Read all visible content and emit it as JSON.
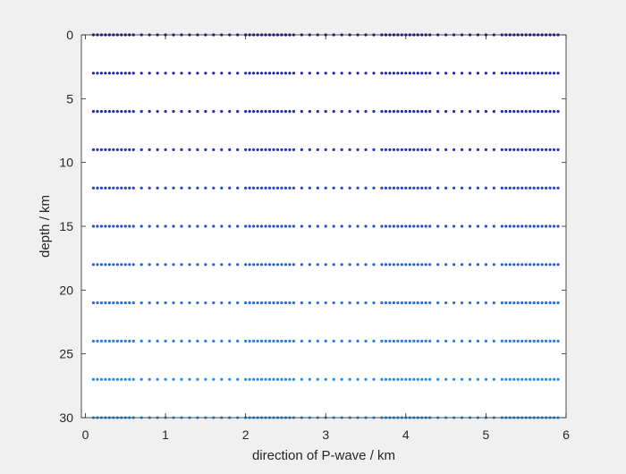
{
  "figure": {
    "background": "#f0f0f0",
    "axes_background": "#ffffff"
  },
  "chart_data": {
    "type": "scatter",
    "title": "",
    "xlabel": "direction of P-wave / km",
    "ylabel": "depth / km",
    "xlim": [
      -0.05,
      6
    ],
    "ylim": [
      0,
      30
    ],
    "y_reversed": true,
    "x_ticks": [
      0,
      1,
      2,
      3,
      4,
      5,
      6
    ],
    "x_tick_labels": [
      "0",
      "1",
      "2",
      "3",
      "4",
      "5",
      "6"
    ],
    "y_ticks": [
      0,
      5,
      10,
      15,
      20,
      25,
      30
    ],
    "y_tick_labels": [
      "0",
      "5",
      "10",
      "15",
      "20",
      "25",
      "30"
    ],
    "grid": false,
    "legend": "none",
    "marker": "dot",
    "x_values": [
      0.1,
      0.15,
      0.2,
      0.25,
      0.3,
      0.35,
      0.4,
      0.45,
      0.5,
      0.55,
      0.6,
      0.7,
      0.8,
      0.9,
      1.0,
      1.1,
      1.2,
      1.3,
      1.4,
      1.5,
      1.6,
      1.7,
      1.8,
      1.9,
      2.0,
      2.05,
      2.1,
      2.15,
      2.2,
      2.25,
      2.3,
      2.35,
      2.4,
      2.45,
      2.5,
      2.55,
      2.6,
      2.7,
      2.8,
      2.9,
      3.0,
      3.1,
      3.2,
      3.3,
      3.4,
      3.5,
      3.6,
      3.7,
      3.75,
      3.8,
      3.85,
      3.9,
      3.95,
      4.0,
      4.05,
      4.1,
      4.15,
      4.2,
      4.25,
      4.3,
      4.4,
      4.5,
      4.6,
      4.7,
      4.8,
      4.9,
      5.0,
      5.1,
      5.2,
      5.25,
      5.3,
      5.35,
      5.4,
      5.45,
      5.5,
      5.55,
      5.6,
      5.65,
      5.7,
      5.75,
      5.8,
      5.85,
      5.9
    ],
    "series": [
      {
        "depth": 0,
        "color": "#1a1aa6"
      },
      {
        "depth": 3,
        "color": "#1c22ae"
      },
      {
        "depth": 6,
        "color": "#1e2cb6"
      },
      {
        "depth": 9,
        "color": "#2036bf"
      },
      {
        "depth": 12,
        "color": "#2242c8"
      },
      {
        "depth": 15,
        "color": "#2450d0"
      },
      {
        "depth": 18,
        "color": "#255ed8"
      },
      {
        "depth": 21,
        "color": "#266ddf"
      },
      {
        "depth": 24,
        "color": "#277be6"
      },
      {
        "depth": 27,
        "color": "#288aec"
      },
      {
        "depth": 30,
        "color": "#2a98f0"
      }
    ]
  }
}
